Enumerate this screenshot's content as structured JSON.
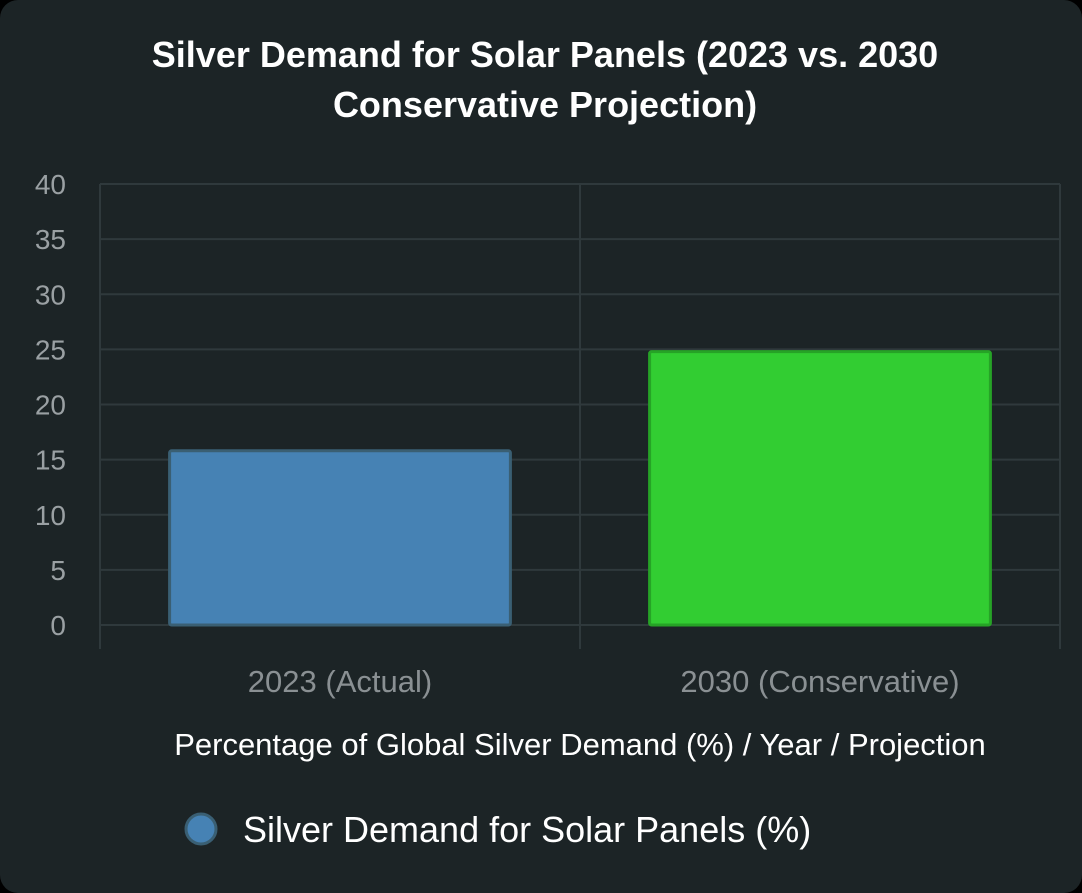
{
  "chart_data": {
    "type": "bar",
    "title": "Silver Demand for Solar Panels (2023 vs. 2030 Conservative Projection)",
    "categories": [
      "2023 (Actual)",
      "2030 (Conservative)"
    ],
    "series": [
      {
        "name": "Silver Demand for Solar Panels (%)",
        "values": [
          15.8,
          24.8
        ],
        "colors": [
          "#4682b4",
          "#32cd32"
        ],
        "border_colors": [
          "#3a5f73",
          "#26a326"
        ]
      }
    ],
    "xlabel": "Percentage of Global Silver Demand (%) / Year / Projection",
    "ylabel": "",
    "ylim": [
      0,
      40
    ],
    "yticks": [
      "0",
      "5",
      "10",
      "15",
      "20",
      "25",
      "30",
      "35",
      "40"
    ],
    "grid": true,
    "legend_position": "bottom",
    "legend_marker_color": "#4682b4"
  }
}
